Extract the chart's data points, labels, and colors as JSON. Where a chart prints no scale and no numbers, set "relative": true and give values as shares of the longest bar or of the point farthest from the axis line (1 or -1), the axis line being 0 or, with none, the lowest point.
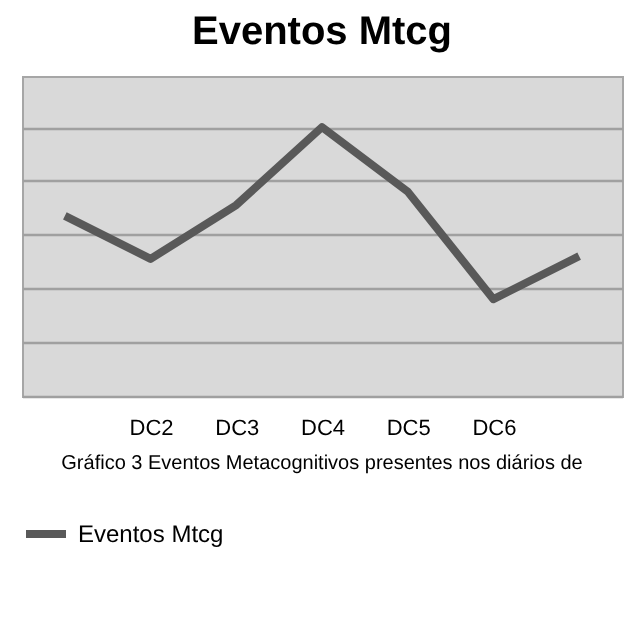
{
  "chart_data": {
    "type": "line",
    "title": "Eventos Mtcg",
    "categories": [
      null,
      "DC2",
      "DC3",
      "DC4",
      "DC5",
      "DC6",
      null
    ],
    "relative": true,
    "series": [
      {
        "name": "Eventos Mtcg",
        "color": "#595959",
        "values": [
          0.67,
          0.51,
          0.71,
          1,
          0.76,
          0.36,
          0.52
        ]
      }
    ],
    "grid": "y",
    "legend": "bottom",
    "marker": "none",
    "line_style": "solid",
    "annotations": [
      "Gráfico 3 Eventos Metacognitivos  presentes nos diários de"
    ]
  }
}
